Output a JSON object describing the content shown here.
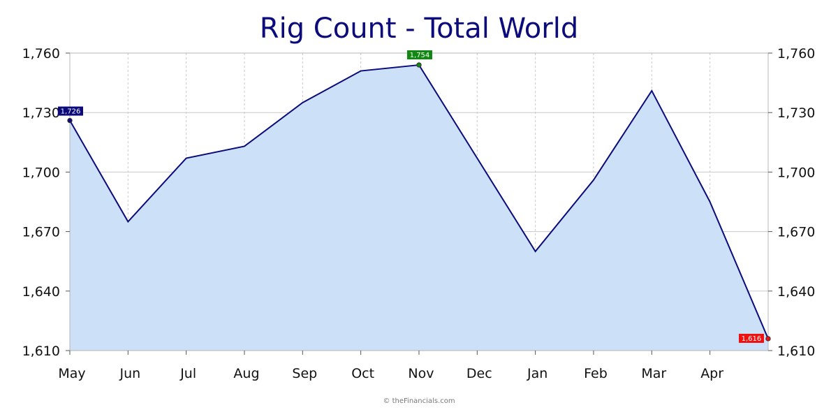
{
  "chart_data": {
    "type": "area",
    "title": "Rig Count - Total World",
    "xlabel": "",
    "ylabel": "",
    "categories": [
      "May",
      "Jun",
      "Jul",
      "Aug",
      "Sep",
      "Oct",
      "Nov",
      "Dec",
      "Jan",
      "Feb",
      "Mar",
      "Apr",
      "May"
    ],
    "x_tick_labels": [
      "May",
      "Jun",
      "Jul",
      "Aug",
      "Sep",
      "Oct",
      "Nov",
      "Dec",
      "Jan",
      "Feb",
      "Mar",
      "Apr"
    ],
    "series": [
      {
        "values": [
          1726,
          1675,
          1707,
          1713,
          1735,
          1751,
          1754,
          1707,
          1660,
          1696,
          1741,
          1685,
          1616
        ]
      }
    ],
    "ylim": [
      1610,
      1760
    ],
    "y_ticks": [
      1610,
      1640,
      1670,
      1700,
      1730,
      1760
    ],
    "y_tick_labels": [
      "1,610",
      "1,640",
      "1,670",
      "1,700",
      "1,730",
      "1,760"
    ],
    "grid": true,
    "dual_y_axis": true,
    "annotations": [
      {
        "label": "1,726",
        "index": 0,
        "color": "#0b0b7c"
      },
      {
        "label": "1,754",
        "index": 6,
        "color": "#118811"
      },
      {
        "label": "1,616",
        "index": 12,
        "color": "#ee1111"
      }
    ],
    "colors": {
      "line": "#0b0b7c",
      "fill": "#cce0f7",
      "grid": "#c8c8c8",
      "title": "#0b0b7c"
    }
  },
  "footer": {
    "credit": "© theFinancials.com"
  }
}
